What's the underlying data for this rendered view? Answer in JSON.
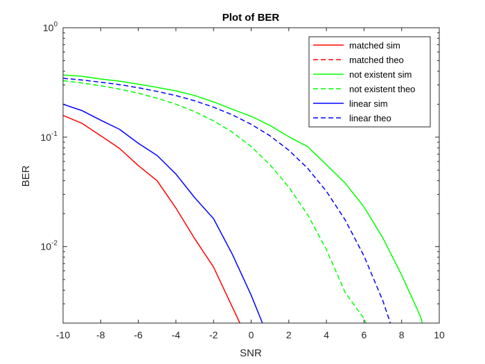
{
  "chart_data": {
    "type": "line",
    "title": "Plot of BER",
    "xlabel": "SNR",
    "ylabel": "BER",
    "xlim": [
      -10,
      10
    ],
    "ylim": [
      0.002,
      1
    ],
    "yscale": "log",
    "x_ticks": [
      -10,
      -8,
      -6,
      -4,
      -2,
      0,
      2,
      4,
      6,
      8,
      10
    ],
    "x_tick_labels": [
      "-10",
      "-8",
      "-6",
      "-4",
      "-2",
      "0",
      "2",
      "4",
      "6",
      "8",
      "10"
    ],
    "y_ticks": [
      {
        "value": 1,
        "base": "10",
        "exp": "0"
      },
      {
        "value": 0.1,
        "base": "10",
        "exp": "-1"
      },
      {
        "value": 0.01,
        "base": "10",
        "exp": "-2"
      }
    ],
    "grid": false,
    "legend_position": "top-right",
    "series": [
      {
        "name": "matched sim",
        "color": "#ff0000",
        "dash": "solid",
        "x": [
          -10,
          -9,
          -8,
          -7,
          -6,
          -5,
          -4,
          -3,
          -2,
          -1,
          -0.6
        ],
        "y": [
          0.158,
          0.134,
          0.103,
          0.079,
          0.055,
          0.04,
          0.0225,
          0.0118,
          0.0065,
          0.0028,
          0.002
        ]
      },
      {
        "name": "matched theo",
        "color": "#ff0000",
        "dash": "dashed",
        "x": [],
        "y": []
      },
      {
        "name": "not existent sim",
        "color": "#00ff00",
        "dash": "solid",
        "x": [
          -10,
          -9,
          -8,
          -7,
          -6,
          -5,
          -4,
          -3,
          -2,
          -1,
          0,
          1,
          2,
          3,
          4,
          5,
          6,
          7,
          8,
          9,
          9.1
        ],
        "y": [
          0.37,
          0.36,
          0.34,
          0.325,
          0.305,
          0.285,
          0.265,
          0.24,
          0.21,
          0.18,
          0.155,
          0.128,
          0.101,
          0.082,
          0.056,
          0.038,
          0.023,
          0.012,
          0.0055,
          0.0023,
          0.002
        ]
      },
      {
        "name": "not existent theo",
        "color": "#00ff00",
        "dash": "dashed",
        "x": [
          -10,
          -9,
          -8,
          -7,
          -6,
          -5,
          -4,
          -3,
          -2,
          -1,
          0,
          1,
          2,
          3,
          4,
          5,
          6,
          6.1
        ],
        "y": [
          0.328,
          0.313,
          0.295,
          0.275,
          0.252,
          0.227,
          0.2,
          0.171,
          0.141,
          0.111,
          0.082,
          0.056,
          0.035,
          0.0196,
          0.0094,
          0.0038,
          0.0022,
          0.002
        ]
      },
      {
        "name": "linear sim",
        "color": "#0000ff",
        "dash": "solid",
        "x": [
          -10,
          -9,
          -8,
          -7,
          -6,
          -5,
          -4,
          -3,
          -2,
          -1,
          0,
          0.6
        ],
        "y": [
          0.2,
          0.175,
          0.143,
          0.118,
          0.088,
          0.068,
          0.046,
          0.028,
          0.018,
          0.0085,
          0.0036,
          0.002
        ]
      },
      {
        "name": "linear theo",
        "color": "#0000ff",
        "dash": "dashed",
        "x": [
          -10,
          -9,
          -8,
          -7,
          -6,
          -5,
          -4,
          -3,
          -2,
          -1,
          0,
          1,
          2,
          3,
          4,
          5,
          6,
          7,
          7.4
        ],
        "y": [
          0.345,
          0.333,
          0.318,
          0.302,
          0.283,
          0.262,
          0.24,
          0.215,
          0.188,
          0.16,
          0.131,
          0.103,
          0.076,
          0.052,
          0.032,
          0.0175,
          0.0082,
          0.0032,
          0.002
        ]
      }
    ]
  }
}
